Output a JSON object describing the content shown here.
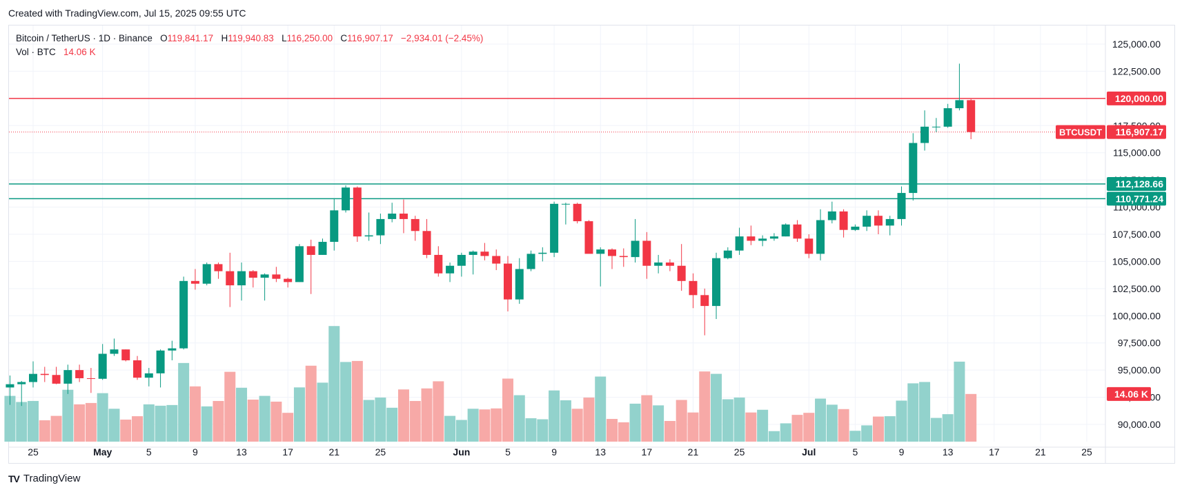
{
  "header": {
    "created_text": "Created with TradingView.com, Jul 15, 2025 09:55 UTC"
  },
  "legend": {
    "symbol": "Bitcoin / TetherUS · 1D · Binance",
    "o_label": "O",
    "o_value": "119,841.17",
    "h_label": "H",
    "h_value": "119,940.83",
    "l_label": "L",
    "l_value": "116,250.00",
    "c_label": "C",
    "c_value": "116,907.17",
    "change": "−2,934.01 (−2.45%)",
    "vol_label": "Vol · BTC",
    "vol_value": "14.06 K"
  },
  "footer": {
    "logo": "TV",
    "brand": "TradingView"
  },
  "colors": {
    "up": "#089981",
    "down": "#f23645",
    "vol_up": "#92d2cc",
    "vol_down": "#f7a9a7",
    "grid": "#f0f3fa",
    "axis_text": "#131722"
  },
  "chart_data": {
    "type": "candlestick",
    "symbol": "BTCUSDT",
    "timeframe": "1D",
    "y_axis": {
      "ticks": [
        90000,
        92500,
        95000,
        97500,
        100000,
        102500,
        105000,
        107500,
        110000,
        112500,
        115000,
        117500,
        120000,
        122500,
        125000
      ],
      "tick_labels": [
        "90,000.00",
        "92,500.00",
        "95,000.00",
        "97,500.00",
        "100,000.00",
        "102,500.00",
        "105,000.00",
        "107,500.00",
        "110,000.00",
        "112,500.00",
        "115,000.00",
        "117,500.00",
        "120,000.00",
        "122,500.00",
        "125,000.00"
      ]
    },
    "x_axis": {
      "labels": [
        {
          "date": "2025-04-25",
          "text": "25",
          "bold": false
        },
        {
          "date": "2025-05-01",
          "text": "May",
          "bold": true
        },
        {
          "date": "2025-05-05",
          "text": "5",
          "bold": false
        },
        {
          "date": "2025-05-09",
          "text": "9",
          "bold": false
        },
        {
          "date": "2025-05-13",
          "text": "13",
          "bold": false
        },
        {
          "date": "2025-05-17",
          "text": "17",
          "bold": false
        },
        {
          "date": "2025-05-21",
          "text": "21",
          "bold": false
        },
        {
          "date": "2025-05-25",
          "text": "25",
          "bold": false
        },
        {
          "date": "2025-06-01",
          "text": "Jun",
          "bold": true
        },
        {
          "date": "2025-06-05",
          "text": "5",
          "bold": false
        },
        {
          "date": "2025-06-09",
          "text": "9",
          "bold": false
        },
        {
          "date": "2025-06-13",
          "text": "13",
          "bold": false
        },
        {
          "date": "2025-06-17",
          "text": "17",
          "bold": false
        },
        {
          "date": "2025-06-21",
          "text": "21",
          "bold": false
        },
        {
          "date": "2025-06-25",
          "text": "25",
          "bold": false
        },
        {
          "date": "2025-07-01",
          "text": "Jul",
          "bold": true
        },
        {
          "date": "2025-07-05",
          "text": "5",
          "bold": false
        },
        {
          "date": "2025-07-09",
          "text": "9",
          "bold": false
        },
        {
          "date": "2025-07-13",
          "text": "13",
          "bold": false
        },
        {
          "date": "2025-07-17",
          "text": "17",
          "bold": false
        },
        {
          "date": "2025-07-21",
          "text": "21",
          "bold": false
        },
        {
          "date": "2025-07-25",
          "text": "25",
          "bold": false
        }
      ]
    },
    "horizontal_lines": [
      {
        "price": 120000,
        "label": "120,000.00",
        "color": "#f23645"
      },
      {
        "price": 112128.66,
        "label": "112,128.66",
        "color": "#089981"
      },
      {
        "price": 110771.24,
        "label": "110,771.24",
        "color": "#089981"
      }
    ],
    "last_price": {
      "price": 116907.17,
      "label": "116,907.17",
      "tag": "BTCUSDT",
      "color": "#f23645"
    },
    "volume_label": {
      "value": 14.06,
      "label": "14.06 K",
      "color": "#f23645"
    },
    "candles": [
      {
        "date": "2025-04-23",
        "o": 93400,
        "h": 94500,
        "l": 91800,
        "c": 93700,
        "v": 13.5
      },
      {
        "date": "2025-04-24",
        "o": 93700,
        "h": 94000,
        "l": 91700,
        "c": 93900,
        "v": 11.7
      },
      {
        "date": "2025-04-25",
        "o": 93900,
        "h": 95800,
        "l": 93400,
        "c": 94650,
        "v": 12.0
      },
      {
        "date": "2025-04-26",
        "o": 94650,
        "h": 95300,
        "l": 93900,
        "c": 94550,
        "v": 6.3
      },
      {
        "date": "2025-04-27",
        "o": 94550,
        "h": 95300,
        "l": 93700,
        "c": 93750,
        "v": 7.6
      },
      {
        "date": "2025-04-28",
        "o": 93750,
        "h": 95500,
        "l": 92800,
        "c": 95000,
        "v": 15.3
      },
      {
        "date": "2025-04-29",
        "o": 95000,
        "h": 95500,
        "l": 93900,
        "c": 94250,
        "v": 11.0
      },
      {
        "date": "2025-04-30",
        "o": 94250,
        "h": 95200,
        "l": 92900,
        "c": 94200,
        "v": 11.4
      },
      {
        "date": "2025-05-01",
        "o": 94200,
        "h": 97400,
        "l": 94100,
        "c": 96500,
        "v": 14.3
      },
      {
        "date": "2025-05-02",
        "o": 96500,
        "h": 97900,
        "l": 96300,
        "c": 96900,
        "v": 9.7
      },
      {
        "date": "2025-05-03",
        "o": 96900,
        "h": 96900,
        "l": 95800,
        "c": 95900,
        "v": 6.5
      },
      {
        "date": "2025-05-04",
        "o": 95900,
        "h": 96300,
        "l": 94100,
        "c": 94300,
        "v": 7.5
      },
      {
        "date": "2025-05-05",
        "o": 94300,
        "h": 95200,
        "l": 93500,
        "c": 94700,
        "v": 11.0
      },
      {
        "date": "2025-05-06",
        "o": 94700,
        "h": 96900,
        "l": 93400,
        "c": 96800,
        "v": 10.6
      },
      {
        "date": "2025-05-07",
        "o": 96800,
        "h": 97700,
        "l": 95900,
        "c": 97000,
        "v": 10.8
      },
      {
        "date": "2025-05-08",
        "o": 97000,
        "h": 103600,
        "l": 96900,
        "c": 103200,
        "v": 23.2
      },
      {
        "date": "2025-05-09",
        "o": 103200,
        "h": 104300,
        "l": 102400,
        "c": 102950,
        "v": 16.3
      },
      {
        "date": "2025-05-10",
        "o": 102950,
        "h": 104900,
        "l": 102800,
        "c": 104750,
        "v": 10.4
      },
      {
        "date": "2025-05-11",
        "o": 104750,
        "h": 104900,
        "l": 103400,
        "c": 104100,
        "v": 12.0
      },
      {
        "date": "2025-05-12",
        "o": 104100,
        "h": 105800,
        "l": 100800,
        "c": 102800,
        "v": 20.6
      },
      {
        "date": "2025-05-13",
        "o": 102800,
        "h": 104900,
        "l": 101400,
        "c": 104100,
        "v": 15.9
      },
      {
        "date": "2025-05-14",
        "o": 104100,
        "h": 104200,
        "l": 102600,
        "c": 103500,
        "v": 12.4
      },
      {
        "date": "2025-05-15",
        "o": 103500,
        "h": 103900,
        "l": 101400,
        "c": 103800,
        "v": 13.5
      },
      {
        "date": "2025-05-16",
        "o": 103800,
        "h": 104500,
        "l": 103100,
        "c": 103400,
        "v": 11.8
      },
      {
        "date": "2025-05-17",
        "o": 103400,
        "h": 103500,
        "l": 102600,
        "c": 103100,
        "v": 8.5
      },
      {
        "date": "2025-05-18",
        "o": 103100,
        "h": 106600,
        "l": 103100,
        "c": 106400,
        "v": 16.0
      },
      {
        "date": "2025-05-19",
        "o": 106400,
        "h": 107000,
        "l": 102000,
        "c": 105600,
        "v": 22.4
      },
      {
        "date": "2025-05-20",
        "o": 105600,
        "h": 107100,
        "l": 105600,
        "c": 106800,
        "v": 17.4
      },
      {
        "date": "2025-05-21",
        "o": 106800,
        "h": 110800,
        "l": 106000,
        "c": 109700,
        "v": 34.1
      },
      {
        "date": "2025-05-22",
        "o": 109700,
        "h": 112000,
        "l": 109500,
        "c": 111800,
        "v": 23.5
      },
      {
        "date": "2025-05-23",
        "o": 111800,
        "h": 111900,
        "l": 106800,
        "c": 107300,
        "v": 23.8
      },
      {
        "date": "2025-05-24",
        "o": 107300,
        "h": 109500,
        "l": 106900,
        "c": 107400,
        "v": 12.3
      },
      {
        "date": "2025-05-25",
        "o": 107400,
        "h": 109400,
        "l": 106600,
        "c": 108900,
        "v": 13.0
      },
      {
        "date": "2025-05-26",
        "o": 108900,
        "h": 110400,
        "l": 108600,
        "c": 109400,
        "v": 10.0
      },
      {
        "date": "2025-05-27",
        "o": 109400,
        "h": 110700,
        "l": 107600,
        "c": 108900,
        "v": 15.4
      },
      {
        "date": "2025-05-28",
        "o": 108900,
        "h": 109200,
        "l": 106900,
        "c": 107800,
        "v": 12.0
      },
      {
        "date": "2025-05-29",
        "o": 107800,
        "h": 108900,
        "l": 105300,
        "c": 105600,
        "v": 15.7
      },
      {
        "date": "2025-05-30",
        "o": 105600,
        "h": 106400,
        "l": 103600,
        "c": 103900,
        "v": 17.8
      },
      {
        "date": "2025-05-31",
        "o": 103900,
        "h": 104900,
        "l": 103100,
        "c": 104600,
        "v": 7.6
      },
      {
        "date": "2025-06-01",
        "o": 104600,
        "h": 105800,
        "l": 103600,
        "c": 105600,
        "v": 6.4
      },
      {
        "date": "2025-06-02",
        "o": 105600,
        "h": 106000,
        "l": 103800,
        "c": 105900,
        "v": 9.7
      },
      {
        "date": "2025-06-03",
        "o": 105900,
        "h": 106700,
        "l": 105100,
        "c": 105500,
        "v": 9.5
      },
      {
        "date": "2025-06-04",
        "o": 105500,
        "h": 106100,
        "l": 104200,
        "c": 104800,
        "v": 9.8
      },
      {
        "date": "2025-06-05",
        "o": 104800,
        "h": 105500,
        "l": 100400,
        "c": 101500,
        "v": 18.6
      },
      {
        "date": "2025-06-06",
        "o": 101500,
        "h": 105300,
        "l": 101100,
        "c": 104300,
        "v": 13.7
      },
      {
        "date": "2025-06-07",
        "o": 104300,
        "h": 106000,
        "l": 104100,
        "c": 105700,
        "v": 6.9
      },
      {
        "date": "2025-06-08",
        "o": 105700,
        "h": 106300,
        "l": 105000,
        "c": 105800,
        "v": 6.6
      },
      {
        "date": "2025-06-09",
        "o": 105800,
        "h": 110500,
        "l": 105400,
        "c": 110300,
        "v": 15.1
      },
      {
        "date": "2025-06-10",
        "o": 110300,
        "h": 110400,
        "l": 108400,
        "c": 110300,
        "v": 12.2
      },
      {
        "date": "2025-06-11",
        "o": 110300,
        "h": 110400,
        "l": 108500,
        "c": 108700,
        "v": 9.7
      },
      {
        "date": "2025-06-12",
        "o": 108700,
        "h": 108800,
        "l": 105900,
        "c": 105700,
        "v": 13.0
      },
      {
        "date": "2025-06-13",
        "o": 105700,
        "h": 106300,
        "l": 102700,
        "c": 106100,
        "v": 19.2
      },
      {
        "date": "2025-06-14",
        "o": 106100,
        "h": 106200,
        "l": 104300,
        "c": 105500,
        "v": 6.7
      },
      {
        "date": "2025-06-15",
        "o": 105500,
        "h": 106200,
        "l": 104500,
        "c": 105400,
        "v": 5.7
      },
      {
        "date": "2025-06-16",
        "o": 105400,
        "h": 108900,
        "l": 104900,
        "c": 106900,
        "v": 11.2
      },
      {
        "date": "2025-06-17",
        "o": 106900,
        "h": 107700,
        "l": 103400,
        "c": 104600,
        "v": 13.7
      },
      {
        "date": "2025-06-18",
        "o": 104600,
        "h": 105600,
        "l": 103900,
        "c": 104900,
        "v": 10.7
      },
      {
        "date": "2025-06-19",
        "o": 104900,
        "h": 105200,
        "l": 104100,
        "c": 104600,
        "v": 6.1
      },
      {
        "date": "2025-06-20",
        "o": 104600,
        "h": 106600,
        "l": 102300,
        "c": 103200,
        "v": 12.3
      },
      {
        "date": "2025-06-21",
        "o": 103200,
        "h": 103900,
        "l": 100700,
        "c": 101900,
        "v": 8.6
      },
      {
        "date": "2025-06-22",
        "o": 101900,
        "h": 102500,
        "l": 98200,
        "c": 100900,
        "v": 20.7
      },
      {
        "date": "2025-06-23",
        "o": 100900,
        "h": 105800,
        "l": 99700,
        "c": 105300,
        "v": 20.0
      },
      {
        "date": "2025-06-24",
        "o": 105300,
        "h": 106300,
        "l": 105200,
        "c": 106000,
        "v": 12.5
      },
      {
        "date": "2025-06-25",
        "o": 106000,
        "h": 108100,
        "l": 105600,
        "c": 107300,
        "v": 13.0
      },
      {
        "date": "2025-06-26",
        "o": 107300,
        "h": 108300,
        "l": 106500,
        "c": 106900,
        "v": 8.6
      },
      {
        "date": "2025-06-27",
        "o": 106900,
        "h": 107400,
        "l": 106400,
        "c": 107100,
        "v": 9.4
      },
      {
        "date": "2025-06-28",
        "o": 107100,
        "h": 107600,
        "l": 106900,
        "c": 107300,
        "v": 3.1
      },
      {
        "date": "2025-06-29",
        "o": 107300,
        "h": 108500,
        "l": 107300,
        "c": 108400,
        "v": 5.4
      },
      {
        "date": "2025-06-30",
        "o": 108400,
        "h": 108800,
        "l": 106800,
        "c": 107100,
        "v": 7.9
      },
      {
        "date": "2025-07-01",
        "o": 107100,
        "h": 107500,
        "l": 105300,
        "c": 105700,
        "v": 8.5
      },
      {
        "date": "2025-07-02",
        "o": 105700,
        "h": 109800,
        "l": 105100,
        "c": 108800,
        "v": 12.7
      },
      {
        "date": "2025-07-03",
        "o": 108800,
        "h": 110500,
        "l": 108500,
        "c": 109600,
        "v": 10.9
      },
      {
        "date": "2025-07-04",
        "o": 109600,
        "h": 109800,
        "l": 107200,
        "c": 107900,
        "v": 9.6
      },
      {
        "date": "2025-07-05",
        "o": 107900,
        "h": 108400,
        "l": 107800,
        "c": 108200,
        "v": 3.2
      },
      {
        "date": "2025-07-06",
        "o": 108200,
        "h": 109700,
        "l": 107800,
        "c": 109200,
        "v": 4.8
      },
      {
        "date": "2025-07-07",
        "o": 109200,
        "h": 109700,
        "l": 107500,
        "c": 108300,
        "v": 7.4
      },
      {
        "date": "2025-07-08",
        "o": 108300,
        "h": 109200,
        "l": 107400,
        "c": 108900,
        "v": 7.5
      },
      {
        "date": "2025-07-09",
        "o": 108900,
        "h": 111900,
        "l": 108300,
        "c": 111300,
        "v": 12.1
      },
      {
        "date": "2025-07-10",
        "o": 111300,
        "h": 116800,
        "l": 110600,
        "c": 115900,
        "v": 17.2
      },
      {
        "date": "2025-07-11",
        "o": 115900,
        "h": 118900,
        "l": 115200,
        "c": 117400,
        "v": 17.6
      },
      {
        "date": "2025-07-12",
        "o": 117400,
        "h": 118200,
        "l": 116900,
        "c": 117400,
        "v": 7.0
      },
      {
        "date": "2025-07-13",
        "o": 117400,
        "h": 119500,
        "l": 117300,
        "c": 119100,
        "v": 8.1
      },
      {
        "date": "2025-07-14",
        "o": 119100,
        "h": 123200,
        "l": 118900,
        "c": 119841.17,
        "v": 23.6
      },
      {
        "date": "2025-07-15",
        "o": 119841.17,
        "h": 119940.83,
        "l": 116250,
        "c": 116907.17,
        "v": 14.06
      }
    ]
  }
}
